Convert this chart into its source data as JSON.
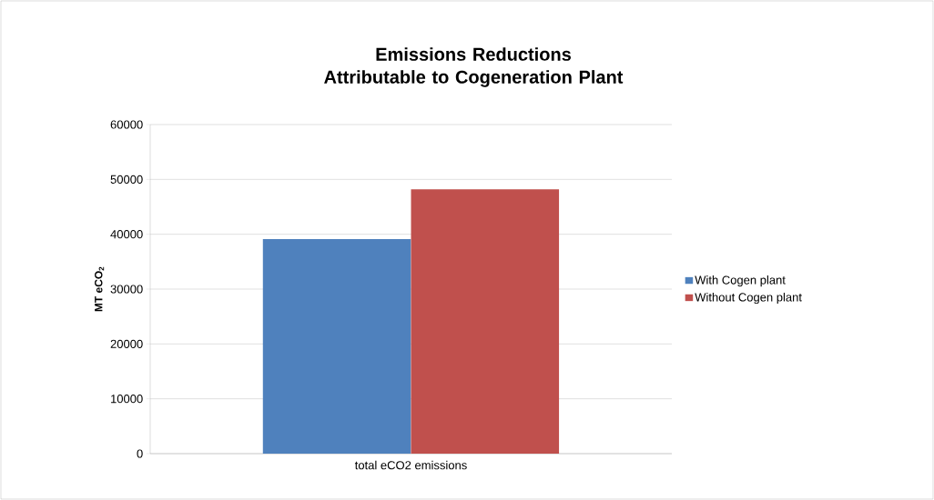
{
  "chart_data": {
    "type": "bar",
    "title": "Emissions Reductions Attributable to Cogeneration Plant",
    "ylabel": "MT eCO$_{2}$",
    "categories": [
      "total eCO2 emissions"
    ],
    "series": [
      {
        "name": "With Cogen plant",
        "color": "#4f81bd",
        "values": [
          39100
        ]
      },
      {
        "name": "Without Cogen plant",
        "color": "#c0504d",
        "values": [
          48200
        ]
      }
    ],
    "ylim": [
      0,
      60000
    ],
    "yticks": [
      0,
      10000,
      20000,
      30000,
      40000,
      50000,
      60000
    ],
    "grid": "y",
    "legend": "right"
  }
}
